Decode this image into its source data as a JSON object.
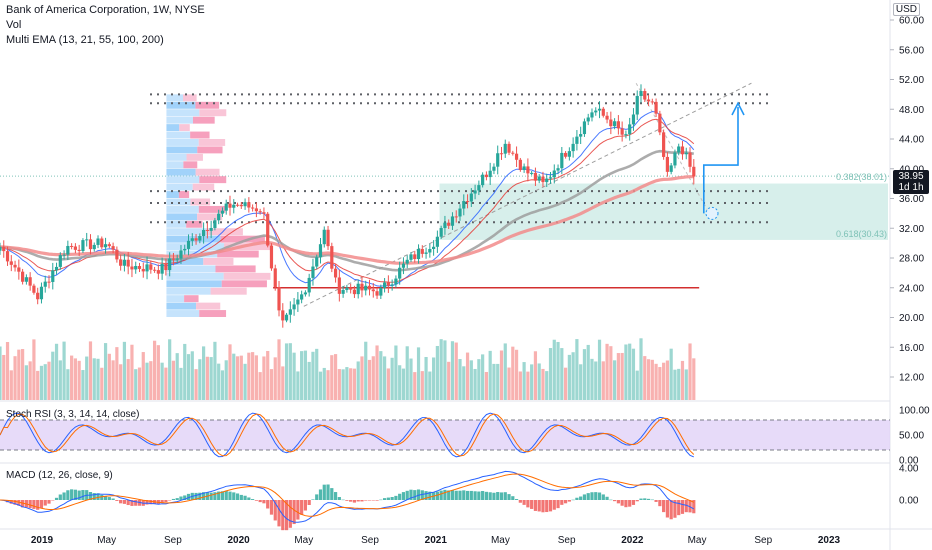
{
  "header": {
    "title": "Bank of America Corporation, 1W, NYSE",
    "vol_label": "Vol",
    "ema_label": "Multi EMA (13, 21, 55, 100, 200)",
    "currency": "USD"
  },
  "price_tag": {
    "price": "38.95",
    "countdown": "1d 1h"
  },
  "fib_labels": {
    "fib382": "0.382(38.01)",
    "fib618": "0.618(30.43)"
  },
  "indicators": {
    "stoch_label": "Stoch RSI (3, 3, 14, 14, close)",
    "macd_label": "MACD (12, 26, close, 9)"
  },
  "colors": {
    "up": "#26a69a",
    "down": "#ef5350",
    "ema_fast": "#2962ff",
    "ema_red": "#e53935",
    "ema_gray": "#9e9e9e",
    "ema_pink": "#f28b8b",
    "fib_zone": "#cdebe6",
    "support": "#d32f2f",
    "arrow": "#2196f3",
    "stoch_band": "#e1d2f7"
  },
  "chart_data": [
    {
      "type": "candlestick",
      "title": "Bank of America Corporation, 1W, NYSE",
      "ylim": [
        9.5,
        62
      ],
      "y_ticks": [
        60.0,
        56.0,
        52.0,
        48.0,
        44.0,
        40.0,
        36.0,
        32.0,
        28.0,
        24.0,
        20.0,
        16.0,
        12.0
      ],
      "x_ticks": [
        "2019",
        "May",
        "Sep",
        "2020",
        "May",
        "Sep",
        "2021",
        "May",
        "Sep",
        "2022",
        "May",
        "Sep",
        "2023"
      ],
      "x_tick_dates": [
        "2019-01-01",
        "2019-05-01",
        "2019-09-01",
        "2020-01-01",
        "2020-05-01",
        "2020-09-01",
        "2021-01-01",
        "2021-05-01",
        "2021-09-01",
        "2022-01-01",
        "2022-05-01",
        "2022-09-01",
        "2023-01-01"
      ],
      "price_anchors": [
        [
          "2018-10-15",
          29.5
        ],
        [
          "2018-12-24",
          22.8
        ],
        [
          "2019-02-15",
          29.5
        ],
        [
          "2019-05-01",
          30.0
        ],
        [
          "2019-06-01",
          27.0
        ],
        [
          "2019-08-15",
          26.5
        ],
        [
          "2019-10-15",
          31.0
        ],
        [
          "2019-12-20",
          35.3
        ],
        [
          "2020-02-15",
          34.5
        ],
        [
          "2020-03-20",
          18.5
        ],
        [
          "2020-05-01",
          23.5
        ],
        [
          "2020-06-08",
          31.5
        ],
        [
          "2020-07-01",
          24.0
        ],
        [
          "2020-09-21",
          23.5
        ],
        [
          "2020-11-09",
          27.5
        ],
        [
          "2021-01-01",
          30.5
        ],
        [
          "2021-02-20",
          35.5
        ],
        [
          "2021-04-01",
          39.0
        ],
        [
          "2021-05-10",
          43.5
        ],
        [
          "2021-06-15",
          39.8
        ],
        [
          "2021-07-20",
          37.8
        ],
        [
          "2021-09-01",
          42.5
        ],
        [
          "2021-10-20",
          48.0
        ],
        [
          "2021-11-20",
          46.5
        ],
        [
          "2021-12-20",
          44.0
        ],
        [
          "2022-01-14",
          50.0
        ],
        [
          "2022-02-10",
          48.5
        ],
        [
          "2022-03-07",
          38.8
        ],
        [
          "2022-03-30",
          43.5
        ],
        [
          "2022-04-25",
          38.95
        ]
      ],
      "fib_382": 38.01,
      "fib_618": 30.43,
      "last_price": 38.95,
      "support_level": 24.0,
      "resistance_level": 48.8,
      "target_price": 48.8
    },
    {
      "type": "bar",
      "title": "Vol",
      "series": "weekly volume, colored by candle direction"
    },
    {
      "type": "line",
      "title": "Stoch RSI (3, 3, 14, 14, close)",
      "ylim": [
        0,
        100
      ],
      "y_ticks": [
        100.0,
        50.0,
        0.0
      ],
      "bands": [
        20,
        80
      ]
    },
    {
      "type": "bar",
      "title": "MACD (12, 26, close, 9)",
      "y_ticks": [
        4.0,
        0.0
      ]
    }
  ]
}
